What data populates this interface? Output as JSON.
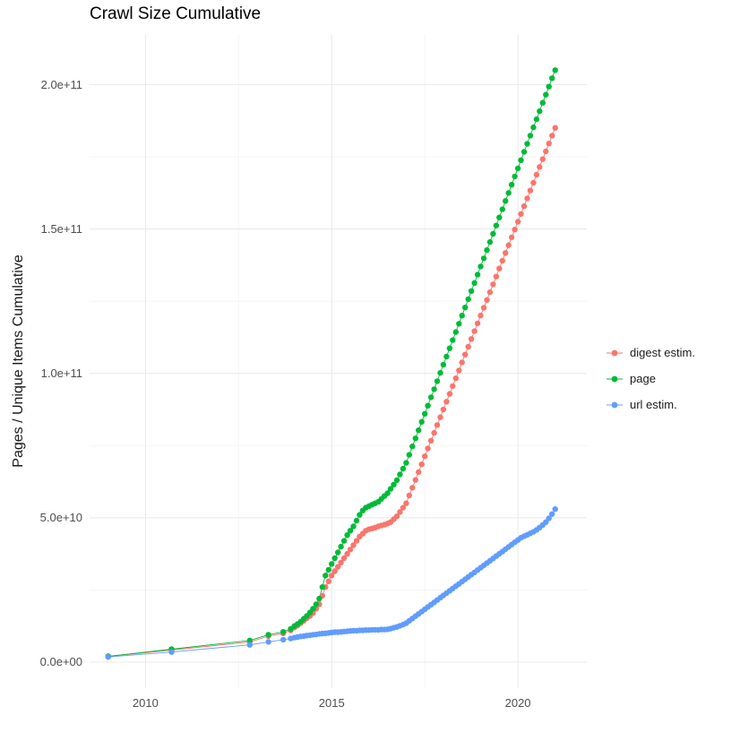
{
  "chart_data": {
    "type": "scatter",
    "title": "Crawl Size Cumulative",
    "xlabel": "",
    "ylabel": "Pages / Unique Items Cumulative",
    "legend_position": "right",
    "background": "#ffffff",
    "grid_major_color": "#e8e8e8",
    "grid_minor_color": "#f4f4f4",
    "value_unit": 1000000000.0,
    "xlim": [
      2008.5,
      2021.85
    ],
    "ylim_e9": [
      -9,
      217.5
    ],
    "x_ticks": [
      {
        "label": "2010",
        "value": 2010
      },
      {
        "label": "2015",
        "value": 2015
      },
      {
        "label": "2020",
        "value": 2020
      }
    ],
    "x_minor": [
      2012.5,
      2017.5
    ],
    "y_ticks": [
      {
        "label": "0.0e+00",
        "value_e9": 0
      },
      {
        "label": "5.0e+10",
        "value_e9": 50
      },
      {
        "label": "1.0e+11",
        "value_e9": 100
      },
      {
        "label": "1.5e+11",
        "value_e9": 150
      },
      {
        "label": "2.0e+11",
        "value_e9": 200
      }
    ],
    "y_minor_e9": [
      25,
      75,
      125,
      175
    ],
    "series": [
      {
        "name": "digest estim.",
        "color": "#F8766D",
        "points_e9": [
          [
            2009.0,
            2
          ],
          [
            2010.7,
            4.2
          ],
          [
            2012.8,
            7
          ],
          [
            2013.3,
            9
          ],
          [
            2013.7,
            10
          ],
          [
            2013.9,
            11
          ],
          [
            2014.0,
            12
          ],
          [
            2014.083,
            12.7
          ],
          [
            2014.167,
            13.5
          ],
          [
            2014.25,
            14.3
          ],
          [
            2014.333,
            15.2
          ],
          [
            2014.417,
            16
          ],
          [
            2014.5,
            17
          ],
          [
            2014.583,
            18.5
          ],
          [
            2014.667,
            20
          ],
          [
            2014.75,
            23
          ],
          [
            2014.833,
            26
          ],
          [
            2014.917,
            28
          ],
          [
            2015.0,
            30
          ],
          [
            2015.083,
            31.5
          ],
          [
            2015.167,
            33
          ],
          [
            2015.25,
            34.5
          ],
          [
            2015.333,
            36
          ],
          [
            2015.417,
            37.5
          ],
          [
            2015.5,
            39
          ],
          [
            2015.583,
            40.5
          ],
          [
            2015.667,
            42
          ],
          [
            2015.75,
            43.5
          ],
          [
            2015.833,
            44.5
          ],
          [
            2015.917,
            45.5
          ],
          [
            2016.0,
            46
          ],
          [
            2016.083,
            46.3
          ],
          [
            2016.167,
            46.6
          ],
          [
            2016.25,
            47
          ],
          [
            2016.333,
            47.3
          ],
          [
            2016.417,
            47.6
          ],
          [
            2016.5,
            48
          ],
          [
            2016.583,
            48.5
          ],
          [
            2016.667,
            49.5
          ],
          [
            2016.75,
            50.5
          ],
          [
            2016.833,
            52
          ],
          [
            2016.917,
            53.5
          ],
          [
            2017.0,
            55
          ],
          [
            2017.083,
            57.7
          ],
          [
            2017.167,
            60.4
          ],
          [
            2017.25,
            63.1
          ],
          [
            2017.333,
            65.8
          ],
          [
            2017.417,
            68.5
          ],
          [
            2017.5,
            71.3
          ],
          [
            2017.583,
            74
          ],
          [
            2017.667,
            76.7
          ],
          [
            2017.75,
            79.4
          ],
          [
            2017.833,
            82.1
          ],
          [
            2017.917,
            84.8
          ],
          [
            2018.0,
            87.5
          ],
          [
            2018.083,
            90.2
          ],
          [
            2018.167,
            92.9
          ],
          [
            2018.25,
            95.6
          ],
          [
            2018.333,
            98.3
          ],
          [
            2018.417,
            101
          ],
          [
            2018.5,
            103.8
          ],
          [
            2018.583,
            106.5
          ],
          [
            2018.667,
            109.2
          ],
          [
            2018.75,
            111.9
          ],
          [
            2018.833,
            114.6
          ],
          [
            2018.917,
            117.3
          ],
          [
            2019.0,
            120
          ],
          [
            2019.083,
            122.7
          ],
          [
            2019.167,
            125.4
          ],
          [
            2019.25,
            128.1
          ],
          [
            2019.333,
            130.8
          ],
          [
            2019.417,
            133.5
          ],
          [
            2019.5,
            136.3
          ],
          [
            2019.583,
            139
          ],
          [
            2019.667,
            141.7
          ],
          [
            2019.75,
            144.4
          ],
          [
            2019.833,
            147.1
          ],
          [
            2019.917,
            149.8
          ],
          [
            2020.0,
            152.5
          ],
          [
            2020.083,
            155.2
          ],
          [
            2020.167,
            157.9
          ],
          [
            2020.25,
            160.6
          ],
          [
            2020.333,
            163.3
          ],
          [
            2020.417,
            166
          ],
          [
            2020.5,
            168.8
          ],
          [
            2020.583,
            171.5
          ],
          [
            2020.667,
            174.2
          ],
          [
            2020.75,
            176.9
          ],
          [
            2020.833,
            179.6
          ],
          [
            2020.917,
            182.3
          ],
          [
            2021.0,
            185
          ]
        ]
      },
      {
        "name": "page",
        "color": "#00BA38",
        "points_e9": [
          [
            2009.0,
            2
          ],
          [
            2010.7,
            4.5
          ],
          [
            2012.8,
            7.5
          ],
          [
            2013.3,
            9.5
          ],
          [
            2013.7,
            10.5
          ],
          [
            2013.9,
            11.5
          ],
          [
            2014.0,
            12.5
          ],
          [
            2014.083,
            13.2
          ],
          [
            2014.167,
            14
          ],
          [
            2014.25,
            15
          ],
          [
            2014.333,
            16
          ],
          [
            2014.417,
            17.2
          ],
          [
            2014.5,
            18.5
          ],
          [
            2014.583,
            20
          ],
          [
            2014.667,
            22
          ],
          [
            2014.75,
            26
          ],
          [
            2014.833,
            30
          ],
          [
            2014.917,
            32
          ],
          [
            2015.0,
            34
          ],
          [
            2015.083,
            36
          ],
          [
            2015.167,
            38
          ],
          [
            2015.25,
            40
          ],
          [
            2015.333,
            42
          ],
          [
            2015.417,
            44
          ],
          [
            2015.5,
            45.5
          ],
          [
            2015.583,
            47
          ],
          [
            2015.667,
            49
          ],
          [
            2015.75,
            51
          ],
          [
            2015.833,
            52.5
          ],
          [
            2015.917,
            53.5
          ],
          [
            2016.0,
            54
          ],
          [
            2016.083,
            54.5
          ],
          [
            2016.167,
            55
          ],
          [
            2016.25,
            55.5
          ],
          [
            2016.333,
            56.5
          ],
          [
            2016.417,
            57.5
          ],
          [
            2016.5,
            58.5
          ],
          [
            2016.583,
            60
          ],
          [
            2016.667,
            61.5
          ],
          [
            2016.75,
            63
          ],
          [
            2016.833,
            65
          ],
          [
            2016.917,
            67
          ],
          [
            2017.0,
            69
          ],
          [
            2017.083,
            71.8
          ],
          [
            2017.167,
            74.7
          ],
          [
            2017.25,
            77.5
          ],
          [
            2017.333,
            80.3
          ],
          [
            2017.417,
            83.2
          ],
          [
            2017.5,
            86
          ],
          [
            2017.583,
            88.8
          ],
          [
            2017.667,
            91.7
          ],
          [
            2017.75,
            94.5
          ],
          [
            2017.833,
            97.3
          ],
          [
            2017.917,
            100.2
          ],
          [
            2018.0,
            103
          ],
          [
            2018.083,
            105.8
          ],
          [
            2018.167,
            108.7
          ],
          [
            2018.25,
            111.5
          ],
          [
            2018.333,
            114.3
          ],
          [
            2018.417,
            117.2
          ],
          [
            2018.5,
            120
          ],
          [
            2018.583,
            122.8
          ],
          [
            2018.667,
            125.7
          ],
          [
            2018.75,
            128.5
          ],
          [
            2018.833,
            131.3
          ],
          [
            2018.917,
            134.2
          ],
          [
            2019.0,
            137
          ],
          [
            2019.083,
            139.8
          ],
          [
            2019.167,
            142.7
          ],
          [
            2019.25,
            145.5
          ],
          [
            2019.333,
            148.3
          ],
          [
            2019.417,
            151.2
          ],
          [
            2019.5,
            154
          ],
          [
            2019.583,
            156.8
          ],
          [
            2019.667,
            159.7
          ],
          [
            2019.75,
            162.5
          ],
          [
            2019.833,
            165.3
          ],
          [
            2019.917,
            168.2
          ],
          [
            2020.0,
            171
          ],
          [
            2020.083,
            173.8
          ],
          [
            2020.167,
            176.7
          ],
          [
            2020.25,
            179.5
          ],
          [
            2020.333,
            182.3
          ],
          [
            2020.417,
            185.2
          ],
          [
            2020.5,
            188
          ],
          [
            2020.583,
            190.8
          ],
          [
            2020.667,
            193.7
          ],
          [
            2020.75,
            196.5
          ],
          [
            2020.833,
            199.3
          ],
          [
            2020.917,
            202.2
          ],
          [
            2021.0,
            205
          ]
        ]
      },
      {
        "name": "url estim.",
        "color": "#619CFF",
        "points_e9": [
          [
            2009.0,
            1.8
          ],
          [
            2010.7,
            3.5
          ],
          [
            2012.8,
            6
          ],
          [
            2013.3,
            7
          ],
          [
            2013.7,
            7.8
          ],
          [
            2013.9,
            8.2
          ],
          [
            2014.0,
            8.5
          ],
          [
            2014.083,
            8.7
          ],
          [
            2014.167,
            8.9
          ],
          [
            2014.25,
            9.0
          ],
          [
            2014.333,
            9.2
          ],
          [
            2014.417,
            9.3
          ],
          [
            2014.5,
            9.5
          ],
          [
            2014.583,
            9.6
          ],
          [
            2014.667,
            9.8
          ],
          [
            2014.75,
            9.9
          ],
          [
            2014.833,
            10.0
          ],
          [
            2014.917,
            10.1
          ],
          [
            2015.0,
            10.3
          ],
          [
            2015.083,
            10.4
          ],
          [
            2015.167,
            10.4
          ],
          [
            2015.25,
            10.5
          ],
          [
            2015.333,
            10.6
          ],
          [
            2015.417,
            10.7
          ],
          [
            2015.5,
            10.8
          ],
          [
            2015.583,
            10.9
          ],
          [
            2015.667,
            10.9
          ],
          [
            2015.75,
            11.0
          ],
          [
            2015.833,
            11.0
          ],
          [
            2015.917,
            11.1
          ],
          [
            2016.0,
            11.1
          ],
          [
            2016.083,
            11.2
          ],
          [
            2016.167,
            11.2
          ],
          [
            2016.25,
            11.2
          ],
          [
            2016.333,
            11.3
          ],
          [
            2016.417,
            11.3
          ],
          [
            2016.5,
            11.4
          ],
          [
            2016.583,
            11.6
          ],
          [
            2016.667,
            11.9
          ],
          [
            2016.75,
            12.2
          ],
          [
            2016.833,
            12.6
          ],
          [
            2016.917,
            13.0
          ],
          [
            2017.0,
            13.5
          ],
          [
            2017.083,
            14.3
          ],
          [
            2017.167,
            15.1
          ],
          [
            2017.25,
            15.9
          ],
          [
            2017.333,
            16.7
          ],
          [
            2017.417,
            17.5
          ],
          [
            2017.5,
            18.3
          ],
          [
            2017.583,
            19.1
          ],
          [
            2017.667,
            19.9
          ],
          [
            2017.75,
            20.7
          ],
          [
            2017.833,
            21.5
          ],
          [
            2017.917,
            22.3
          ],
          [
            2018.0,
            23.1
          ],
          [
            2018.083,
            23.9
          ],
          [
            2018.167,
            24.7
          ],
          [
            2018.25,
            25.5
          ],
          [
            2018.333,
            26.3
          ],
          [
            2018.417,
            27.1
          ],
          [
            2018.5,
            27.9
          ],
          [
            2018.583,
            28.7
          ],
          [
            2018.667,
            29.5
          ],
          [
            2018.75,
            30.3
          ],
          [
            2018.833,
            31.1
          ],
          [
            2018.917,
            31.9
          ],
          [
            2019.0,
            32.7
          ],
          [
            2019.083,
            33.5
          ],
          [
            2019.167,
            34.3
          ],
          [
            2019.25,
            35.1
          ],
          [
            2019.333,
            35.9
          ],
          [
            2019.417,
            36.7
          ],
          [
            2019.5,
            37.5
          ],
          [
            2019.583,
            38.3
          ],
          [
            2019.667,
            39.1
          ],
          [
            2019.75,
            39.9
          ],
          [
            2019.833,
            40.7
          ],
          [
            2019.917,
            41.5
          ],
          [
            2020.0,
            42.3
          ],
          [
            2020.083,
            43.1
          ],
          [
            2020.167,
            43.6
          ],
          [
            2020.25,
            44.1
          ],
          [
            2020.333,
            44.6
          ],
          [
            2020.417,
            45.1
          ],
          [
            2020.5,
            45.8
          ],
          [
            2020.583,
            46.6
          ],
          [
            2020.667,
            47.5
          ],
          [
            2020.75,
            48.5
          ],
          [
            2020.833,
            49.8
          ],
          [
            2020.917,
            51.3
          ],
          [
            2021.0,
            53
          ]
        ]
      }
    ]
  }
}
